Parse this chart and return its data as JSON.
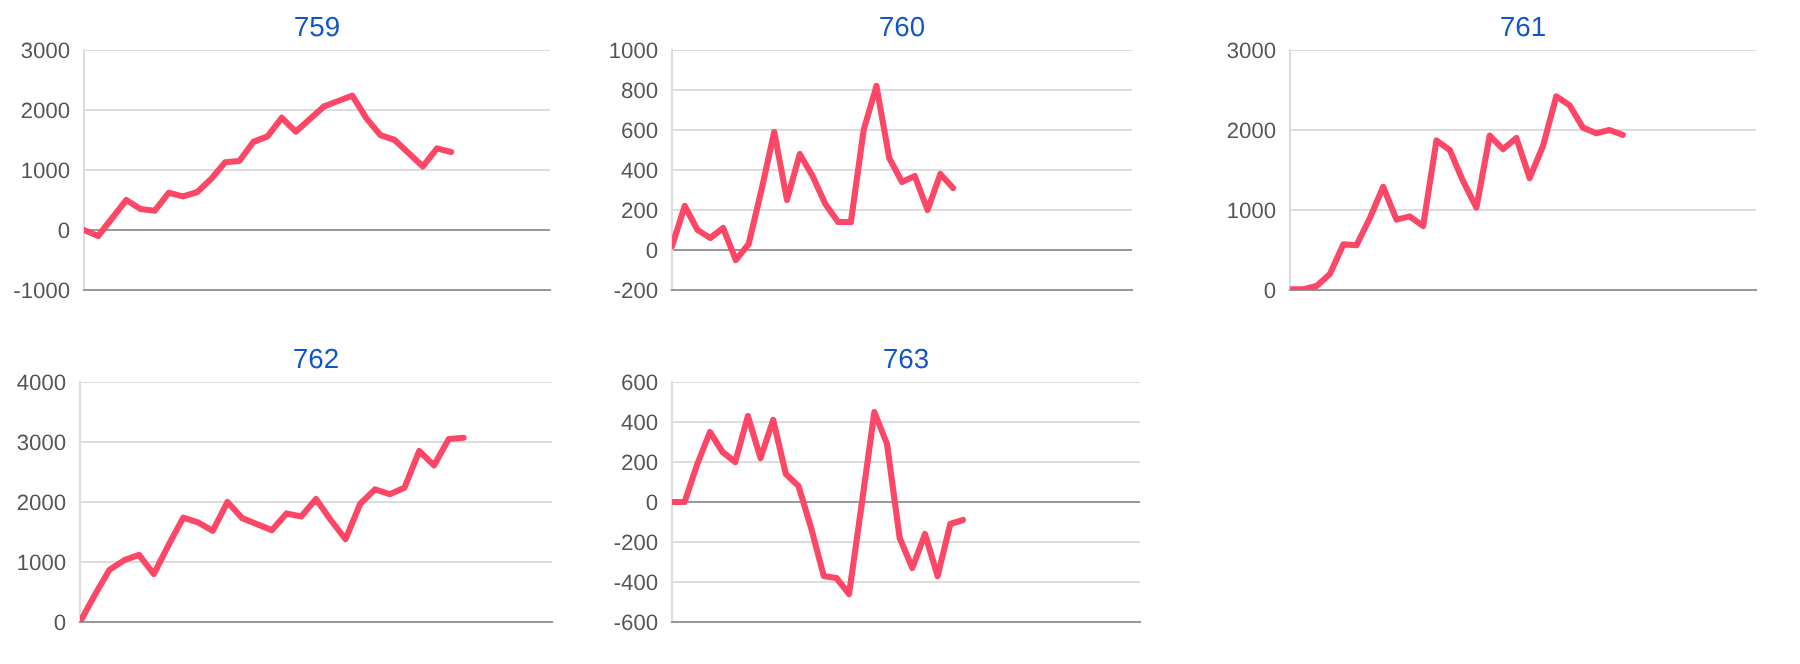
{
  "chart_data": [
    {
      "type": "line",
      "title": "759",
      "color": "#fd4766",
      "grid": "y",
      "tick_labels": "y",
      "ylim": [
        -1000,
        3000
      ],
      "yticks": [
        -1000,
        0,
        1000,
        2000,
        3000
      ],
      "categories": [
        null,
        null,
        null,
        null,
        null,
        null,
        null,
        null,
        null,
        null,
        null,
        null,
        null,
        null,
        null,
        null,
        null,
        null,
        null,
        null,
        null,
        null,
        null,
        null,
        null,
        null,
        null,
        null,
        null,
        null,
        null,
        null,
        null,
        null
      ],
      "values": [
        0,
        -100,
        200,
        500,
        350,
        320,
        620,
        560,
        630,
        850,
        1130,
        1150,
        1470,
        1560,
        1870,
        1640,
        1850,
        2060,
        2150,
        2240,
        1860,
        1580,
        1500,
        1280,
        1060,
        1360,
        1300,
        null,
        null,
        null,
        null,
        null,
        null,
        null
      ]
    },
    {
      "type": "line",
      "title": "760",
      "color": "#fd4766",
      "grid": "y",
      "tick_labels": "y",
      "ylim": [
        -200,
        1000
      ],
      "yticks": [
        -200,
        0,
        200,
        400,
        600,
        800,
        1000
      ],
      "categories": [
        null,
        null,
        null,
        null,
        null,
        null,
        null,
        null,
        null,
        null,
        null,
        null,
        null,
        null,
        null,
        null,
        null,
        null,
        null,
        null,
        null,
        null,
        null,
        null,
        null,
        null,
        null,
        null,
        null,
        null,
        null,
        null,
        null,
        null,
        null,
        null,
        null
      ],
      "values": [
        20,
        220,
        100,
        60,
        110,
        -50,
        30,
        300,
        590,
        250,
        480,
        370,
        230,
        140,
        140,
        600,
        820,
        460,
        340,
        370,
        200,
        380,
        310,
        null,
        null,
        null,
        null,
        null,
        null,
        null,
        null,
        null,
        null,
        null,
        null,
        null,
        null
      ]
    },
    {
      "type": "line",
      "title": "761",
      "color": "#fd4766",
      "grid": "y",
      "tick_labels": "y",
      "ylim": [
        0,
        3000
      ],
      "yticks": [
        0,
        1000,
        2000,
        3000
      ],
      "categories": [
        null,
        null,
        null,
        null,
        null,
        null,
        null,
        null,
        null,
        null,
        null,
        null,
        null,
        null,
        null,
        null,
        null,
        null,
        null,
        null,
        null,
        null,
        null,
        null,
        null,
        null,
        null,
        null,
        null,
        null,
        null,
        null,
        null,
        null,
        null,
        null
      ],
      "values": [
        10,
        10,
        50,
        200,
        570,
        560,
        900,
        1290,
        880,
        920,
        800,
        1870,
        1750,
        1360,
        1030,
        1930,
        1760,
        1900,
        1400,
        1800,
        2420,
        2310,
        2030,
        1960,
        2000,
        1940,
        null,
        null,
        null,
        null,
        null,
        null,
        null,
        null,
        null,
        null
      ]
    },
    {
      "type": "line",
      "title": "762",
      "color": "#fd4766",
      "grid": "y",
      "tick_labels": "y",
      "ylim": [
        0,
        4000
      ],
      "yticks": [
        0,
        1000,
        2000,
        3000,
        4000
      ],
      "categories": [
        null,
        null,
        null,
        null,
        null,
        null,
        null,
        null,
        null,
        null,
        null,
        null,
        null,
        null,
        null,
        null,
        null,
        null,
        null,
        null,
        null,
        null,
        null,
        null,
        null,
        null,
        null,
        null,
        null,
        null,
        null,
        null,
        null
      ],
      "values": [
        0,
        450,
        870,
        1030,
        1120,
        800,
        1280,
        1740,
        1660,
        1520,
        2000,
        1730,
        1630,
        1530,
        1810,
        1760,
        2050,
        1700,
        1380,
        1970,
        2210,
        2130,
        2240,
        2850,
        2610,
        3050,
        3070,
        null,
        null,
        null,
        null,
        null,
        null
      ]
    },
    {
      "type": "line",
      "title": "763",
      "color": "#fd4766",
      "grid": "y",
      "tick_labels": "y",
      "ylim": [
        -600,
        600
      ],
      "yticks": [
        -600,
        -400,
        -200,
        0,
        200,
        400,
        600
      ],
      "categories": [
        null,
        null,
        null,
        null,
        null,
        null,
        null,
        null,
        null,
        null,
        null,
        null,
        null,
        null,
        null,
        null,
        null,
        null,
        null,
        null,
        null,
        null,
        null,
        null,
        null,
        null,
        null,
        null,
        null,
        null,
        null,
        null,
        null,
        null,
        null,
        null,
        null,
        null
      ],
      "values": [
        0,
        0,
        190,
        350,
        250,
        200,
        430,
        220,
        410,
        140,
        80,
        -130,
        -370,
        -380,
        -460,
        -10,
        450,
        290,
        -180,
        -330,
        -160,
        -370,
        -110,
        -90,
        null,
        null,
        null,
        null,
        null,
        null,
        null,
        null,
        null,
        null,
        null,
        null,
        null,
        null
      ]
    }
  ]
}
